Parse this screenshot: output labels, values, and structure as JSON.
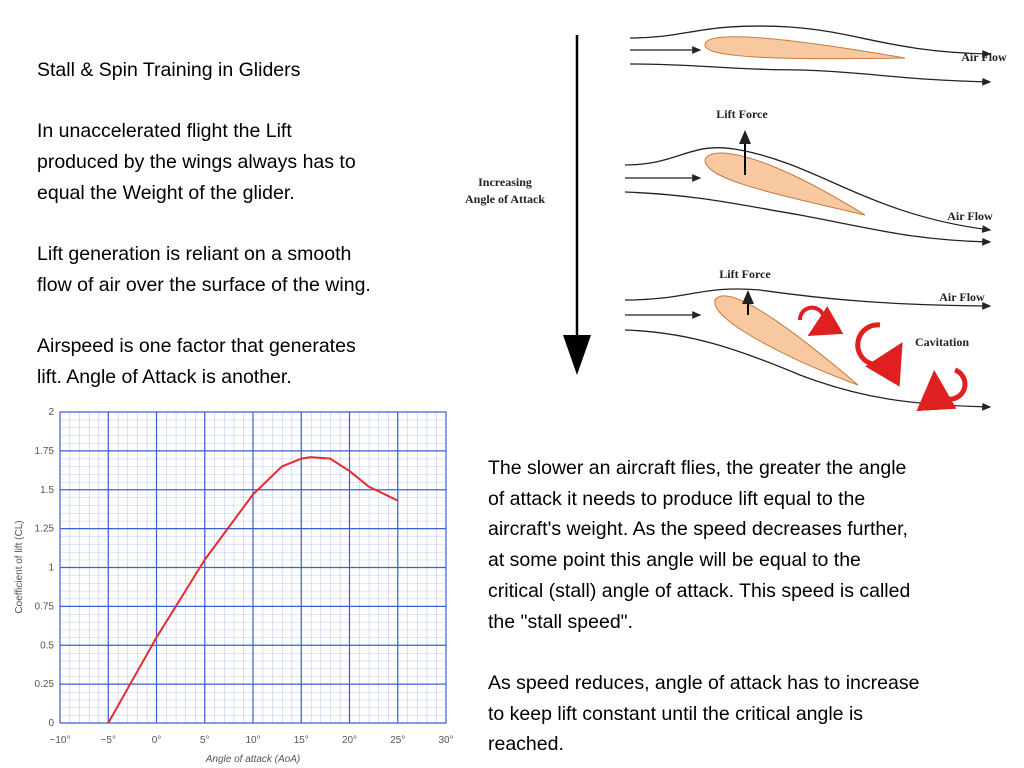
{
  "title": "Stall & Spin Training in Gliders",
  "left_paragraphs": [
    [
      "In unaccelerated flight the Lift",
      "produced by the wings always has to",
      "equal the Weight of the glider."
    ],
    [
      "Lift generation is reliant on a smooth",
      "flow of air over the surface of the wing."
    ],
    [
      "Airspeed is one factor that generates",
      "lift. Angle of Attack is another."
    ]
  ],
  "right_paragraphs": [
    [
      "The slower an aircraft flies, the greater the angle",
      "of attack it needs to produce lift equal to the",
      "aircraft's weight. As the speed decreases further,",
      "at some point this angle will be equal to the",
      "critical (stall) angle of attack. This speed is called",
      "the \"stall speed\"."
    ],
    [
      "As speed reduces, angle of attack has to increase",
      "to keep lift constant until the critical angle is",
      "reached."
    ]
  ],
  "diagram": {
    "axis_label": [
      "Increasing",
      "Angle of Attack"
    ],
    "labels": {
      "air_flow_1": "Air Flow",
      "lift_force_2": "Lift Force",
      "air_flow_2": "Air Flow",
      "lift_force_3": "Lift Force",
      "air_flow_3": "Air Flow",
      "cavitation": "Cavitation"
    }
  },
  "chart_data": {
    "type": "line",
    "xlabel": "Angle of attack (AoA)",
    "ylabel": "Coefficient of lift (CL)",
    "x": [
      -5,
      0,
      5,
      10,
      13,
      15,
      16,
      18,
      20,
      22,
      25
    ],
    "series": [
      {
        "name": "CL",
        "color": "#e8292c",
        "values": [
          0,
          0.55,
          1.05,
          1.47,
          1.65,
          1.7,
          1.71,
          1.7,
          1.62,
          1.52,
          1.43
        ]
      }
    ],
    "xlim": [
      -10,
      30
    ],
    "ylim": [
      0,
      2
    ],
    "xticks": [
      {
        "value": -10,
        "label": "−10°"
      },
      {
        "value": -5,
        "label": "−5°"
      },
      {
        "value": 0,
        "label": "0°"
      },
      {
        "value": 5,
        "label": "5°"
      },
      {
        "value": 10,
        "label": "10°"
      },
      {
        "value": 15,
        "label": "15°"
      },
      {
        "value": 20,
        "label": "20°"
      },
      {
        "value": 25,
        "label": "25°"
      },
      {
        "value": 30,
        "label": "30°"
      }
    ],
    "yticks": [
      0,
      0.25,
      0.5,
      0.75,
      1,
      1.25,
      1.5,
      1.75,
      2
    ],
    "grid": true
  }
}
